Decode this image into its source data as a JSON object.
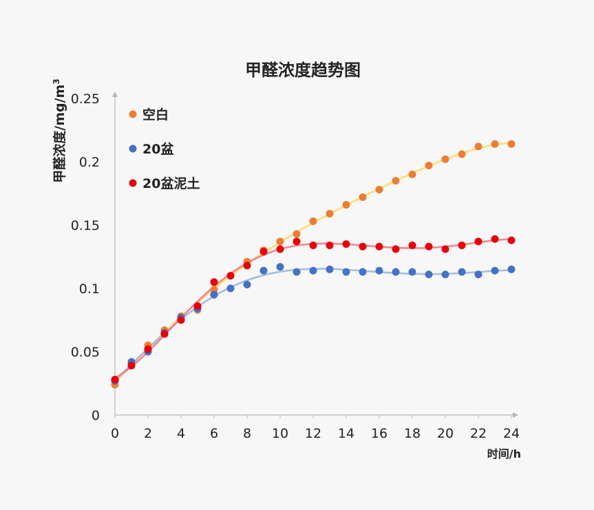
{
  "chart_data": {
    "type": "scatter",
    "title": "甲醛浓度趋势图",
    "xlabel": "时间/h",
    "ylabel_main": "甲醛浓度/mg/m",
    "ylabel_sup": "3",
    "xlim": [
      0,
      24
    ],
    "ylim": [
      0,
      0.25
    ],
    "x_ticks": [
      "0",
      "2",
      "4",
      "6",
      "8",
      "10",
      "12",
      "14",
      "16",
      "18",
      "20",
      "22",
      "24"
    ],
    "y_ticks": [
      "0",
      "0.05",
      "0.1",
      "0.15",
      "0.2",
      "0.25"
    ],
    "grid": false,
    "legend_position": "top-left",
    "trendlines": true,
    "series": [
      {
        "name": "空白",
        "color": "#ED7D31",
        "trend_color": "#FFD966",
        "x": [
          0,
          1,
          2,
          3,
          4,
          5,
          6,
          7,
          8,
          9,
          10,
          11,
          12,
          13,
          14,
          15,
          16,
          17,
          18,
          19,
          20,
          21,
          22,
          23,
          24
        ],
        "y": [
          0.024,
          0.04,
          0.055,
          0.067,
          0.078,
          0.083,
          0.099,
          0.11,
          0.121,
          0.13,
          0.137,
          0.143,
          0.153,
          0.159,
          0.166,
          0.172,
          0.178,
          0.185,
          0.19,
          0.197,
          0.202,
          0.206,
          0.212,
          0.214,
          0.214
        ]
      },
      {
        "name": "20盆",
        "color": "#4472C4",
        "trend_color": "#9DB4E0",
        "x": [
          0,
          1,
          2,
          3,
          4,
          5,
          6,
          7,
          8,
          9,
          10,
          11,
          12,
          13,
          14,
          15,
          16,
          17,
          18,
          19,
          20,
          21,
          22,
          23,
          24
        ],
        "y": [
          0.027,
          0.042,
          0.05,
          0.065,
          0.077,
          0.084,
          0.095,
          0.1,
          0.103,
          0.114,
          0.117,
          0.113,
          0.114,
          0.115,
          0.113,
          0.113,
          0.114,
          0.113,
          0.113,
          0.111,
          0.111,
          0.113,
          0.111,
          0.114,
          0.115
        ]
      },
      {
        "name": "20盆泥土",
        "color": "#E8000B",
        "trend_color": "#EE7B80",
        "x": [
          0,
          1,
          2,
          3,
          4,
          5,
          6,
          7,
          8,
          9,
          10,
          11,
          12,
          13,
          14,
          15,
          16,
          17,
          18,
          19,
          20,
          21,
          22,
          23,
          24
        ],
        "y": [
          0.028,
          0.039,
          0.052,
          0.064,
          0.075,
          0.086,
          0.105,
          0.11,
          0.118,
          0.129,
          0.131,
          0.137,
          0.134,
          0.134,
          0.135,
          0.133,
          0.133,
          0.131,
          0.134,
          0.133,
          0.131,
          0.134,
          0.137,
          0.139,
          0.138
        ]
      }
    ]
  }
}
